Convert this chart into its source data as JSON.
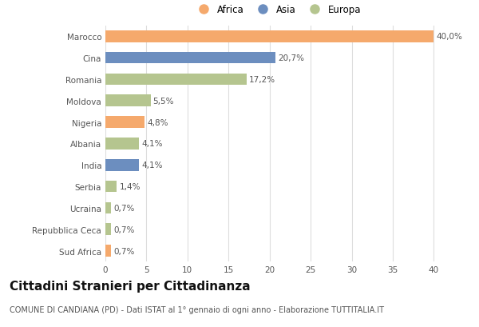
{
  "categories": [
    "Marocco",
    "Cina",
    "Romania",
    "Moldova",
    "Nigeria",
    "Albania",
    "India",
    "Serbia",
    "Ucraina",
    "Repubblica Ceca",
    "Sud Africa"
  ],
  "values": [
    40.0,
    20.7,
    17.2,
    5.5,
    4.8,
    4.1,
    4.1,
    1.4,
    0.7,
    0.7,
    0.7
  ],
  "labels": [
    "40,0%",
    "20,7%",
    "17,2%",
    "5,5%",
    "4,8%",
    "4,1%",
    "4,1%",
    "1,4%",
    "0,7%",
    "0,7%",
    "0,7%"
  ],
  "continents": [
    "Africa",
    "Asia",
    "Europa",
    "Europa",
    "Africa",
    "Europa",
    "Asia",
    "Europa",
    "Europa",
    "Europa",
    "Africa"
  ],
  "colors": {
    "Africa": "#F5A96C",
    "Asia": "#6C8EBF",
    "Europa": "#B5C58F"
  },
  "xlim": [
    0,
    42
  ],
  "xticks": [
    0,
    5,
    10,
    15,
    20,
    25,
    30,
    35,
    40
  ],
  "title": "Cittadini Stranieri per Cittadinanza",
  "subtitle": "COMUNE DI CANDIANA (PD) - Dati ISTAT al 1° gennaio di ogni anno - Elaborazione TUTTITALIA.IT",
  "background_color": "#ffffff",
  "grid_color": "#dddddd",
  "bar_height": 0.55,
  "label_fontsize": 7.5,
  "title_fontsize": 11,
  "subtitle_fontsize": 7,
  "tick_fontsize": 7.5,
  "legend_fontsize": 8.5
}
